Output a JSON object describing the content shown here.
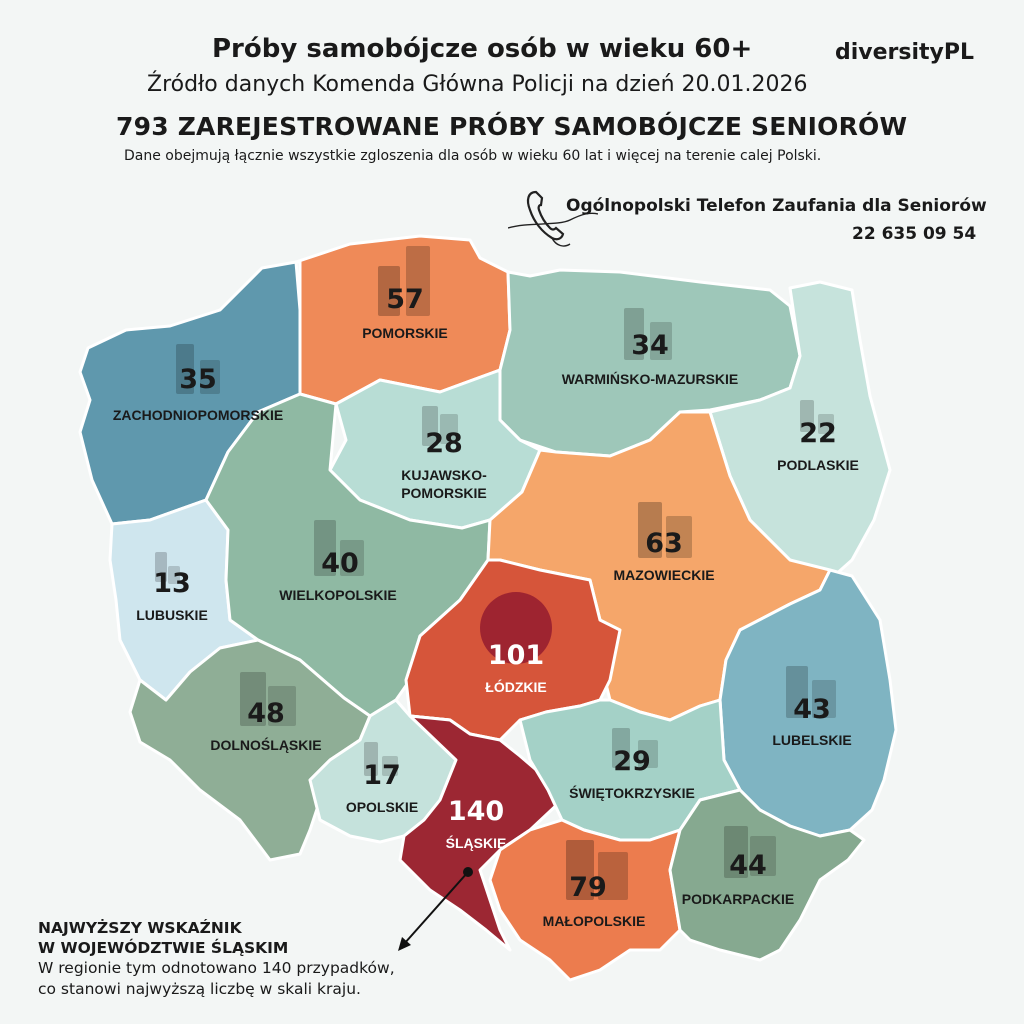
{
  "header": {
    "title": "Próby samobójcze osób w wieku 60+",
    "brand": "diversityPL",
    "source": "Źródło danych Komenda Główna Policji na dzień 20.01.2026",
    "headline": "793 ZAREJESTROWANE PRÓBY SAMOBÓJCZE SENIORÓW",
    "subline": "Dane obejmują łącznie wszystkie zgloszenia dla osób w wieku 60 lat i więcej na terenie calej Polski."
  },
  "helpline": {
    "icon": "phone-icon",
    "label": "Ogólnopolski Telefon Zaufania dla Seniorów",
    "number": "22 635 09 54"
  },
  "note": {
    "heading_line1": "NAJWYŻSZY WSKAŹNIK",
    "heading_line2": "W WOJEWÓDZTWIE ŚLĄSKIM",
    "text_line1": "W regionie tym odnotowano 140 przypadków,",
    "text_line2": "co stanowi najwyższą liczbę w skali kraju."
  },
  "chart_data": {
    "type": "choropleth",
    "total": 793,
    "categories": [
      "ZACHODNIOPOMORSKIE",
      "POMORSKIE",
      "WARMIŃSKO-MAZURSKIE",
      "PODLASKIE",
      "KUJAWSKO-POMORSKIE",
      "LUBUSKIE",
      "WIELKOPOLSKIE",
      "MAZOWIECKIE",
      "ŁÓDZKIE",
      "LUBELSKIE",
      "DOLNOŚLĄSKIE",
      "OPOLSKIE",
      "ŚLĄSKIE",
      "ŚWIĘTOKRZYSKIE",
      "MAŁOPOLSKIE",
      "PODKARPACKIE"
    ],
    "values": [
      35,
      57,
      34,
      22,
      28,
      13,
      40,
      63,
      101,
      43,
      48,
      17,
      140,
      29,
      79,
      44
    ],
    "regions": [
      {
        "label": "ZACHODNIOPOMORSKIE",
        "value": 35,
        "color": "#5f98ad"
      },
      {
        "label": "POMORSKIE",
        "value": 57,
        "color": "#ef8a58"
      },
      {
        "label": "WARMIŃSKO-MAZURSKIE",
        "value": 34,
        "color": "#9ec7b9"
      },
      {
        "label": "PODLASKIE",
        "value": 22,
        "color": "#c6e3dc"
      },
      {
        "label": "KUJAWSKO-\nPOMORSKIE",
        "value": 28,
        "color": "#b8ddd5"
      },
      {
        "label": "LUBUSKIE",
        "value": 13,
        "color": "#cfe6ee"
      },
      {
        "label": "WIELKOPOLSKIE",
        "value": 40,
        "color": "#8fb9a3"
      },
      {
        "label": "MAZOWIECKIE",
        "value": 63,
        "color": "#f5a66a"
      },
      {
        "label": "ŁÓDZKIE",
        "value": 101,
        "color": "#d6553a"
      },
      {
        "label": "LUBELSKIE",
        "value": 43,
        "color": "#7fb4c2"
      },
      {
        "label": "DOLNOŚLĄSKIE",
        "value": 48,
        "color": "#8fae96"
      },
      {
        "label": "OPOLSKIE",
        "value": 17,
        "color": "#c5e2dc"
      },
      {
        "label": "ŚLĄSKIE",
        "value": 140,
        "color": "#9c2733"
      },
      {
        "label": "ŚWIĘTOKRZYSKIE",
        "value": 29,
        "color": "#a4d1c7"
      },
      {
        "label": "MAŁOPOLSKIE",
        "value": 79,
        "color": "#ec7c4e"
      },
      {
        "label": "PODKARPACKIE",
        "value": 44,
        "color": "#86a990"
      }
    ]
  }
}
